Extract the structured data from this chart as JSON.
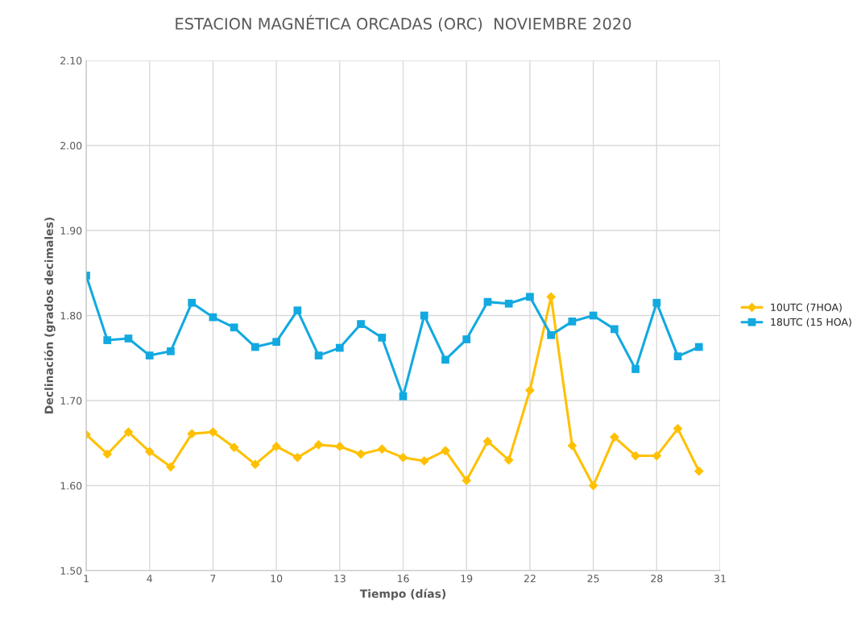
{
  "chart_data": {
    "type": "line",
    "title": "ESTACION MAGNÉTICA ORCADAS (ORC)  NOVIEMBRE 2020",
    "xlabel": "Tiempo (días)",
    "ylabel": "Declinación (grados decimales)",
    "x": [
      1,
      2,
      3,
      4,
      5,
      6,
      7,
      8,
      9,
      10,
      11,
      12,
      13,
      14,
      15,
      16,
      17,
      18,
      19,
      20,
      21,
      22,
      23,
      24,
      25,
      26,
      27,
      28,
      29,
      30
    ],
    "series": [
      {
        "name": "10UTC (7HOA)",
        "color": "#ffc000",
        "marker": "diamond",
        "values": [
          1.66,
          1.637,
          1.663,
          1.64,
          1.622,
          1.661,
          1.663,
          1.645,
          1.625,
          1.646,
          1.633,
          1.648,
          1.646,
          1.637,
          1.643,
          1.633,
          1.629,
          1.641,
          1.606,
          1.652,
          1.63,
          1.712,
          1.822,
          1.647,
          1.6,
          1.657,
          1.635,
          1.635,
          1.667,
          1.617
        ]
      },
      {
        "name": "18UTC (15 HOA)",
        "color": "#12a9e0",
        "marker": "square",
        "values": [
          1.847,
          1.771,
          1.773,
          1.753,
          1.758,
          1.815,
          1.798,
          1.786,
          1.763,
          1.769,
          1.806,
          1.753,
          1.762,
          1.79,
          1.774,
          1.705,
          1.8,
          1.748,
          1.772,
          1.816,
          1.814,
          1.822,
          1.777,
          1.793,
          1.8,
          1.784,
          1.737,
          1.815,
          1.752,
          1.763
        ]
      }
    ],
    "xlim": [
      1,
      31
    ],
    "xticks": [
      1,
      4,
      7,
      10,
      13,
      16,
      19,
      22,
      25,
      28,
      31
    ],
    "ylim": [
      1.5,
      2.1
    ],
    "yticks": [
      {
        "value": 1.5,
        "label": "1.50"
      },
      {
        "value": 1.6,
        "label": "1.60"
      },
      {
        "value": 1.7,
        "label": "1.70"
      },
      {
        "value": 1.8,
        "label": "1.80"
      },
      {
        "value": 1.9,
        "label": "1.90"
      },
      {
        "value": 2.0,
        "label": "2.00"
      },
      {
        "value": 2.1,
        "label": "2.10"
      }
    ],
    "grid": true,
    "legend": "right",
    "line_style": "solid"
  }
}
